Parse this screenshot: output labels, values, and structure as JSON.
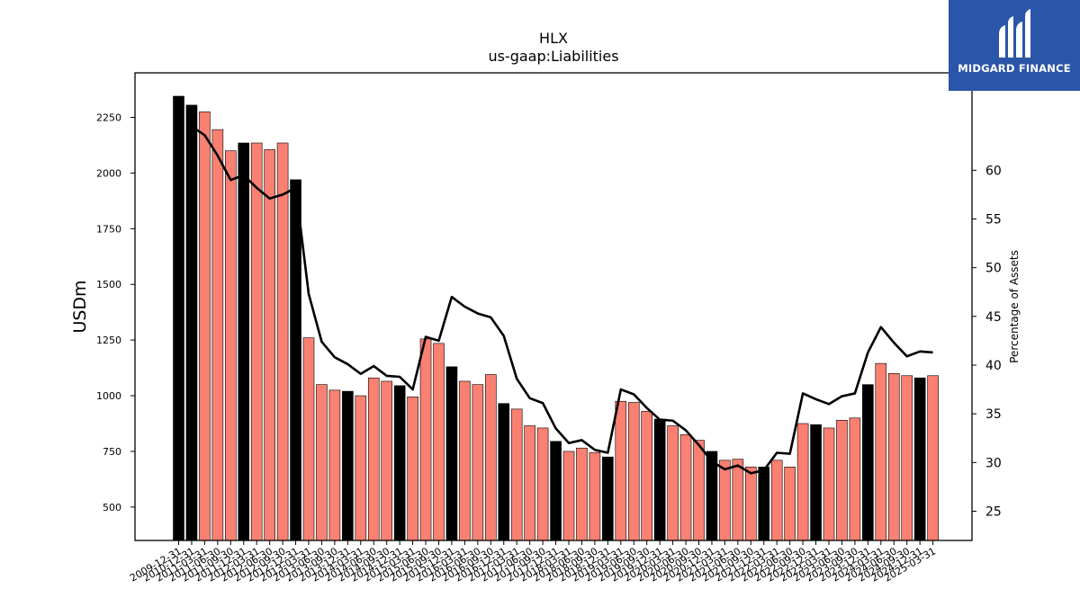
{
  "logo": {
    "text": "MIDGARD FINANCE"
  },
  "chart_data": {
    "type": "bar",
    "title": "HLX",
    "subtitle": "us-gaap:Liabilities",
    "ylabel": "USDm",
    "y2label": "Percentage of Assets",
    "ylim": [
      350,
      2450
    ],
    "y2lim": [
      22,
      70
    ],
    "yticks": [
      500,
      750,
      1000,
      1250,
      1500,
      1750,
      2000,
      2250
    ],
    "y2ticks": [
      25,
      30,
      35,
      40,
      45,
      50,
      55,
      60
    ],
    "colors": {
      "annual": "#000000",
      "quarter": "#fa8072",
      "line": "#000000"
    },
    "categories": [
      "2009-12-31",
      "2010-12-31",
      "2011-03-31",
      "2011-06-30",
      "2011-09-30",
      "2011-12-31",
      "2012-03-31",
      "2012-06-30",
      "2012-09-30",
      "2012-12-31",
      "2013-03-31",
      "2013-06-30",
      "2013-09-30",
      "2013-12-31",
      "2014-03-31",
      "2014-06-30",
      "2014-09-30",
      "2014-12-31",
      "2015-03-31",
      "2015-06-30",
      "2015-09-30",
      "2015-12-31",
      "2016-03-31",
      "2016-06-30",
      "2016-09-30",
      "2016-12-31",
      "2017-03-31",
      "2017-06-30",
      "2017-09-30",
      "2017-12-31",
      "2018-03-31",
      "2018-06-30",
      "2018-09-30",
      "2018-12-31",
      "2019-03-31",
      "2019-06-30",
      "2019-09-30",
      "2019-12-31",
      "2020-03-31",
      "2020-06-30",
      "2020-09-30",
      "2020-12-31",
      "2021-03-31",
      "2021-06-30",
      "2021-09-30",
      "2021-12-31",
      "2022-03-31",
      "2022-06-30",
      "2022-09-30",
      "2022-12-31",
      "2023-03-31",
      "2023-06-30",
      "2023-09-30",
      "2023-12-31",
      "2024-03-31",
      "2024-06-30",
      "2024-09-30",
      "2024-12-31",
      "2025-03-31"
    ],
    "annual": [
      true,
      true,
      false,
      false,
      false,
      true,
      false,
      false,
      false,
      true,
      false,
      false,
      false,
      true,
      false,
      false,
      false,
      true,
      false,
      false,
      false,
      true,
      false,
      false,
      false,
      true,
      false,
      false,
      false,
      true,
      false,
      false,
      false,
      true,
      false,
      false,
      false,
      true,
      false,
      false,
      false,
      true,
      false,
      false,
      false,
      true,
      false,
      false,
      false,
      true,
      false,
      false,
      false,
      true,
      false,
      false,
      false,
      true,
      false
    ],
    "series": [
      {
        "name": "Liabilities",
        "kind": "bar",
        "values": [
          2345,
          2305,
          2275,
          2195,
          2100,
          2135,
          2135,
          2105,
          2135,
          1970,
          1260,
          1050,
          1025,
          1020,
          1000,
          1080,
          1065,
          1045,
          995,
          1255,
          1235,
          1130,
          1065,
          1050,
          1095,
          965,
          940,
          865,
          855,
          795,
          750,
          765,
          745,
          725,
          975,
          970,
          930,
          895,
          865,
          825,
          800,
          750,
          710,
          715,
          680,
          680,
          710,
          680,
          875,
          870,
          855,
          890,
          900,
          1050,
          1145,
          1100,
          1090,
          1080,
          1090
        ]
      },
      {
        "name": "Percentage of Assets",
        "kind": "line",
        "axis": "right",
        "values": [
          null,
          64.5,
          63.6,
          61.5,
          59.0,
          59.5,
          58.2,
          57.1,
          57.5,
          58.2,
          47.3,
          42.4,
          40.8,
          40.1,
          39.1,
          39.9,
          38.9,
          38.8,
          37.5,
          42.9,
          42.5,
          47.0,
          46.0,
          45.3,
          44.9,
          43.0,
          38.6,
          36.6,
          36.1,
          33.5,
          32.0,
          32.3,
          31.3,
          31.0,
          37.5,
          37.0,
          35.6,
          34.4,
          34.3,
          33.3,
          31.8,
          30.1,
          29.3,
          29.7,
          28.9,
          29.2,
          31.0,
          30.9,
          37.1,
          36.5,
          36.0,
          36.8,
          37.1,
          41.3,
          43.9,
          42.3,
          40.9,
          41.4,
          41.3
        ]
      }
    ]
  }
}
